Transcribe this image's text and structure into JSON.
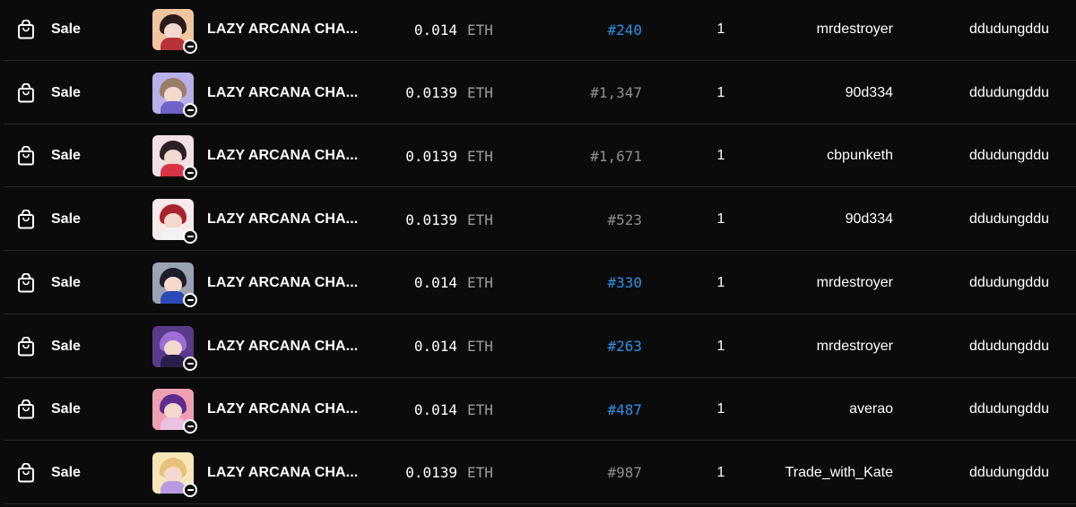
{
  "icons": {
    "event": "shopping-bag-icon",
    "badge": "minus-circle-icon"
  },
  "colors": {
    "background": "#0b0b0b",
    "divider": "#262626",
    "link": "#2f8fe6",
    "muted": "#8e8e8e"
  },
  "rows": [
    {
      "type": "Sale",
      "item": "LAZY ARCANA CHA...",
      "price": "0.014",
      "unit": "ETH",
      "token": "#240",
      "token_link": true,
      "quantity": "1",
      "from": "mrdestroyer",
      "to": "ddudungddu",
      "thumb_colors": [
        "#f0c6a0",
        "#2a1a1a",
        "#b8323a"
      ]
    },
    {
      "type": "Sale",
      "item": "LAZY ARCANA CHA...",
      "price": "0.0139",
      "unit": "ETH",
      "token": "#1,347",
      "token_link": false,
      "quantity": "1",
      "from": "90d334",
      "to": "ddudungddu",
      "thumb_colors": [
        "#b8b0e8",
        "#9a7d66",
        "#6f62c9"
      ]
    },
    {
      "type": "Sale",
      "item": "LAZY ARCANA CHA...",
      "price": "0.0139",
      "unit": "ETH",
      "token": "#1,671",
      "token_link": false,
      "quantity": "1",
      "from": "cbpunketh",
      "to": "ddudungddu",
      "thumb_colors": [
        "#f3dfe6",
        "#2b2024",
        "#d83445"
      ]
    },
    {
      "type": "Sale",
      "item": "LAZY ARCANA CHA...",
      "price": "0.0139",
      "unit": "ETH",
      "token": "#523",
      "token_link": false,
      "quantity": "1",
      "from": "90d334",
      "to": "ddudungddu",
      "thumb_colors": [
        "#f6eaea",
        "#a8232e",
        "#f2f2f2"
      ]
    },
    {
      "type": "Sale",
      "item": "LAZY ARCANA CHA...",
      "price": "0.014",
      "unit": "ETH",
      "token": "#330",
      "token_link": true,
      "quantity": "1",
      "from": "mrdestroyer",
      "to": "ddudungddu",
      "thumb_colors": [
        "#9aa3b2",
        "#1d1d2a",
        "#2c49b8"
      ]
    },
    {
      "type": "Sale",
      "item": "LAZY ARCANA CHA...",
      "price": "0.014",
      "unit": "ETH",
      "token": "#263",
      "token_link": true,
      "quantity": "1",
      "from": "mrdestroyer",
      "to": "ddudungddu",
      "thumb_colors": [
        "#5a3a8a",
        "#9d6fd4",
        "#2a1f48"
      ]
    },
    {
      "type": "Sale",
      "item": "LAZY ARCANA CHA...",
      "price": "0.014",
      "unit": "ETH",
      "token": "#487",
      "token_link": true,
      "quantity": "1",
      "from": "averao",
      "to": "ddudungddu",
      "thumb_colors": [
        "#f0a0b0",
        "#5d2c8e",
        "#e9c3e0"
      ]
    },
    {
      "type": "Sale",
      "item": "LAZY ARCANA CHA...",
      "price": "0.0139",
      "unit": "ETH",
      "token": "#987",
      "token_link": false,
      "quantity": "1",
      "from": "Trade_with_Kate",
      "to": "ddudungddu",
      "thumb_colors": [
        "#f7e7b8",
        "#e7c27a",
        "#b79be2"
      ]
    }
  ]
}
